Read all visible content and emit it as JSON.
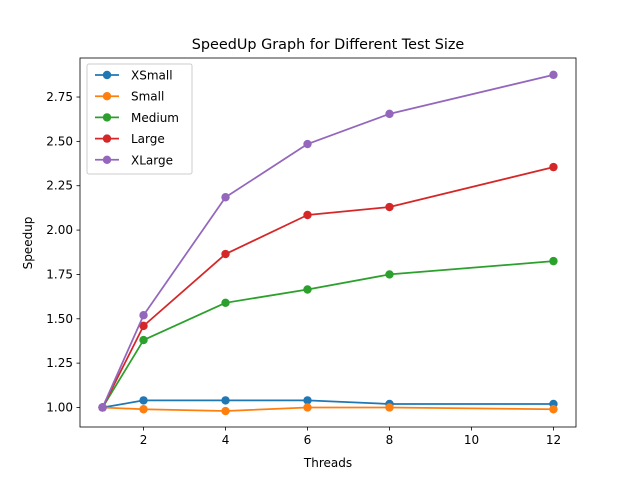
{
  "chart_data": {
    "type": "line",
    "title": "SpeedUp Graph for Different Test Size",
    "xlabel": "Threads",
    "ylabel": "Speedup",
    "x": [
      1,
      2,
      4,
      6,
      8,
      12
    ],
    "xticks": [
      2,
      4,
      6,
      8,
      10,
      12
    ],
    "yticks": [
      1.0,
      1.25,
      1.5,
      1.75,
      2.0,
      2.25,
      2.5,
      2.75
    ],
    "ytick_labels": [
      "1.00",
      "1.25",
      "1.50",
      "1.75",
      "2.00",
      "2.25",
      "2.50",
      "2.75"
    ],
    "xlim": [
      0.45,
      12.55
    ],
    "ylim": [
      0.89,
      2.97
    ],
    "grid": false,
    "legend_position": "upper-left",
    "series": [
      {
        "name": "XSmall",
        "color": "#1f77b4",
        "values": [
          1.0,
          1.04,
          1.04,
          1.04,
          1.02,
          1.02
        ]
      },
      {
        "name": "Small",
        "color": "#ff7f0e",
        "values": [
          1.0,
          0.99,
          0.98,
          1.0,
          1.0,
          0.99
        ]
      },
      {
        "name": "Medium",
        "color": "#2ca02c",
        "values": [
          1.0,
          1.38,
          1.59,
          1.665,
          1.75,
          1.825
        ]
      },
      {
        "name": "Large",
        "color": "#d62728",
        "values": [
          1.0,
          1.46,
          1.865,
          2.085,
          2.13,
          2.355
        ]
      },
      {
        "name": "XLarge",
        "color": "#9467bd",
        "values": [
          1.0,
          1.52,
          2.185,
          2.485,
          2.655,
          2.875
        ]
      }
    ]
  }
}
